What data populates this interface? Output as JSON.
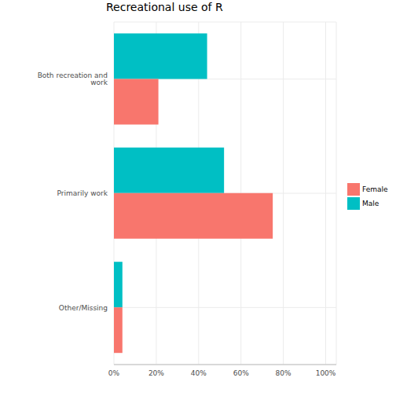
{
  "chart_data": {
    "type": "bar",
    "title": "Recreational use of R",
    "orientation": "horizontal",
    "categories": [
      "Both recreation and work",
      "Primarily work",
      "Other/Missing"
    ],
    "series": [
      {
        "name": "Female",
        "color": "#F8766D",
        "values": [
          21,
          75,
          4
        ]
      },
      {
        "name": "Male",
        "color": "#00BFC4",
        "values": [
          44,
          52,
          4
        ]
      }
    ],
    "xlim": [
      0,
      105
    ],
    "xticks": [
      {
        "value": 0,
        "label": "0%"
      },
      {
        "value": 20,
        "label": "20%"
      },
      {
        "value": 40,
        "label": "40%"
      },
      {
        "value": 60,
        "label": "60%"
      },
      {
        "value": 80,
        "label": "80%"
      },
      {
        "value": 100,
        "label": "100%"
      }
    ],
    "grid": true,
    "legend": "right"
  }
}
